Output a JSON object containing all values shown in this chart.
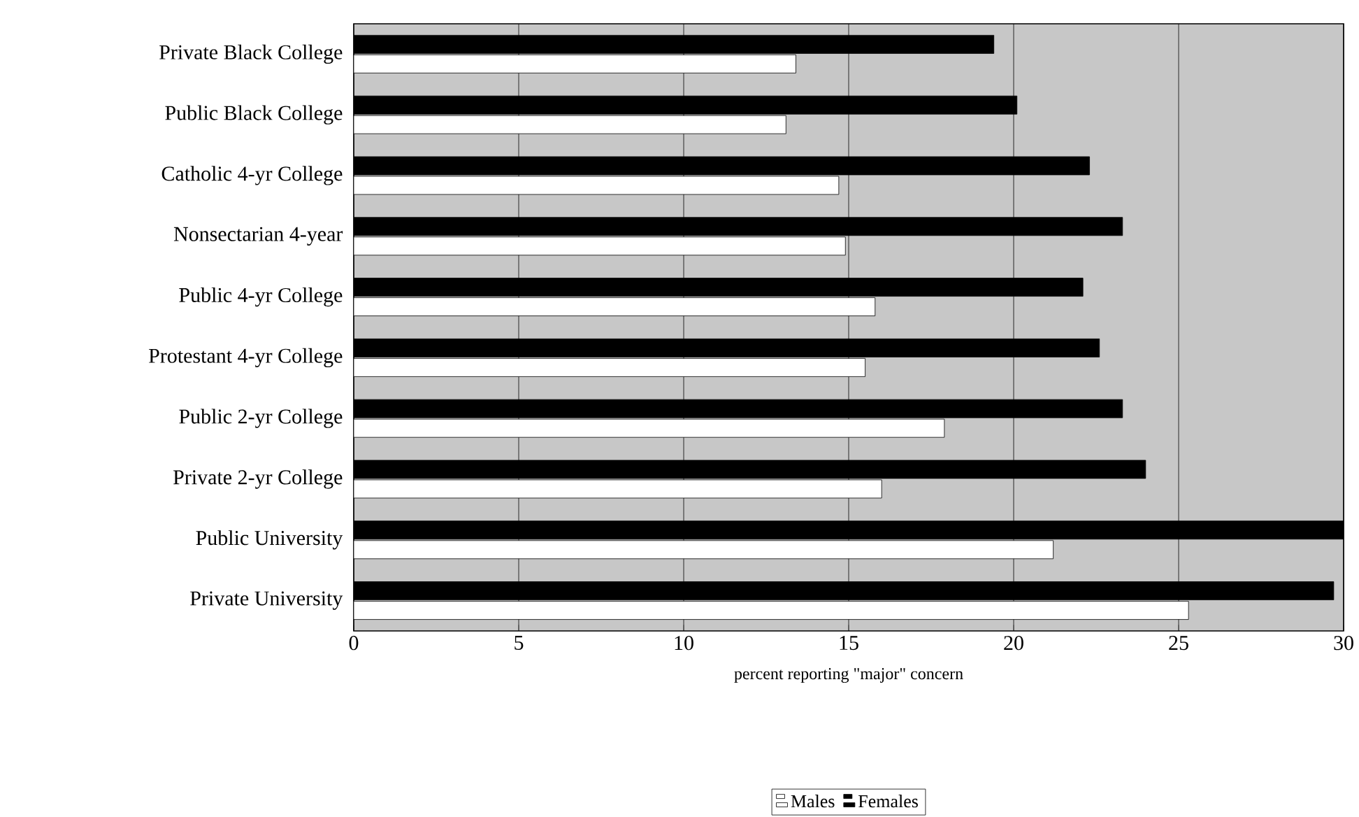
{
  "chart_data": {
    "type": "bar",
    "orientation": "horizontal",
    "categories": [
      "Private Black College",
      "Public Black College",
      "Catholic 4-yr College",
      "Nonsectarian 4-year",
      "Public 4-yr College",
      "Protestant 4-yr College",
      "Public 2-yr College",
      "Private 2-yr College",
      "Public University",
      "Private University"
    ],
    "series": [
      {
        "name": "Males",
        "color": "#ffffff",
        "values": [
          13.4,
          13.1,
          14.7,
          14.9,
          15.8,
          15.5,
          17.9,
          16.0,
          21.2,
          25.3
        ]
      },
      {
        "name": "Females",
        "color": "#000000",
        "values": [
          19.4,
          20.1,
          22.3,
          23.3,
          22.1,
          22.6,
          23.3,
          24.0,
          30,
          29.7
        ]
      }
    ],
    "xlim": [
      0,
      30
    ],
    "xticks": [
      0,
      5,
      10,
      15,
      20,
      25,
      30
    ],
    "xlabel": "percent reporting \"major\" concern",
    "grid": "x",
    "legend": "bottom"
  }
}
